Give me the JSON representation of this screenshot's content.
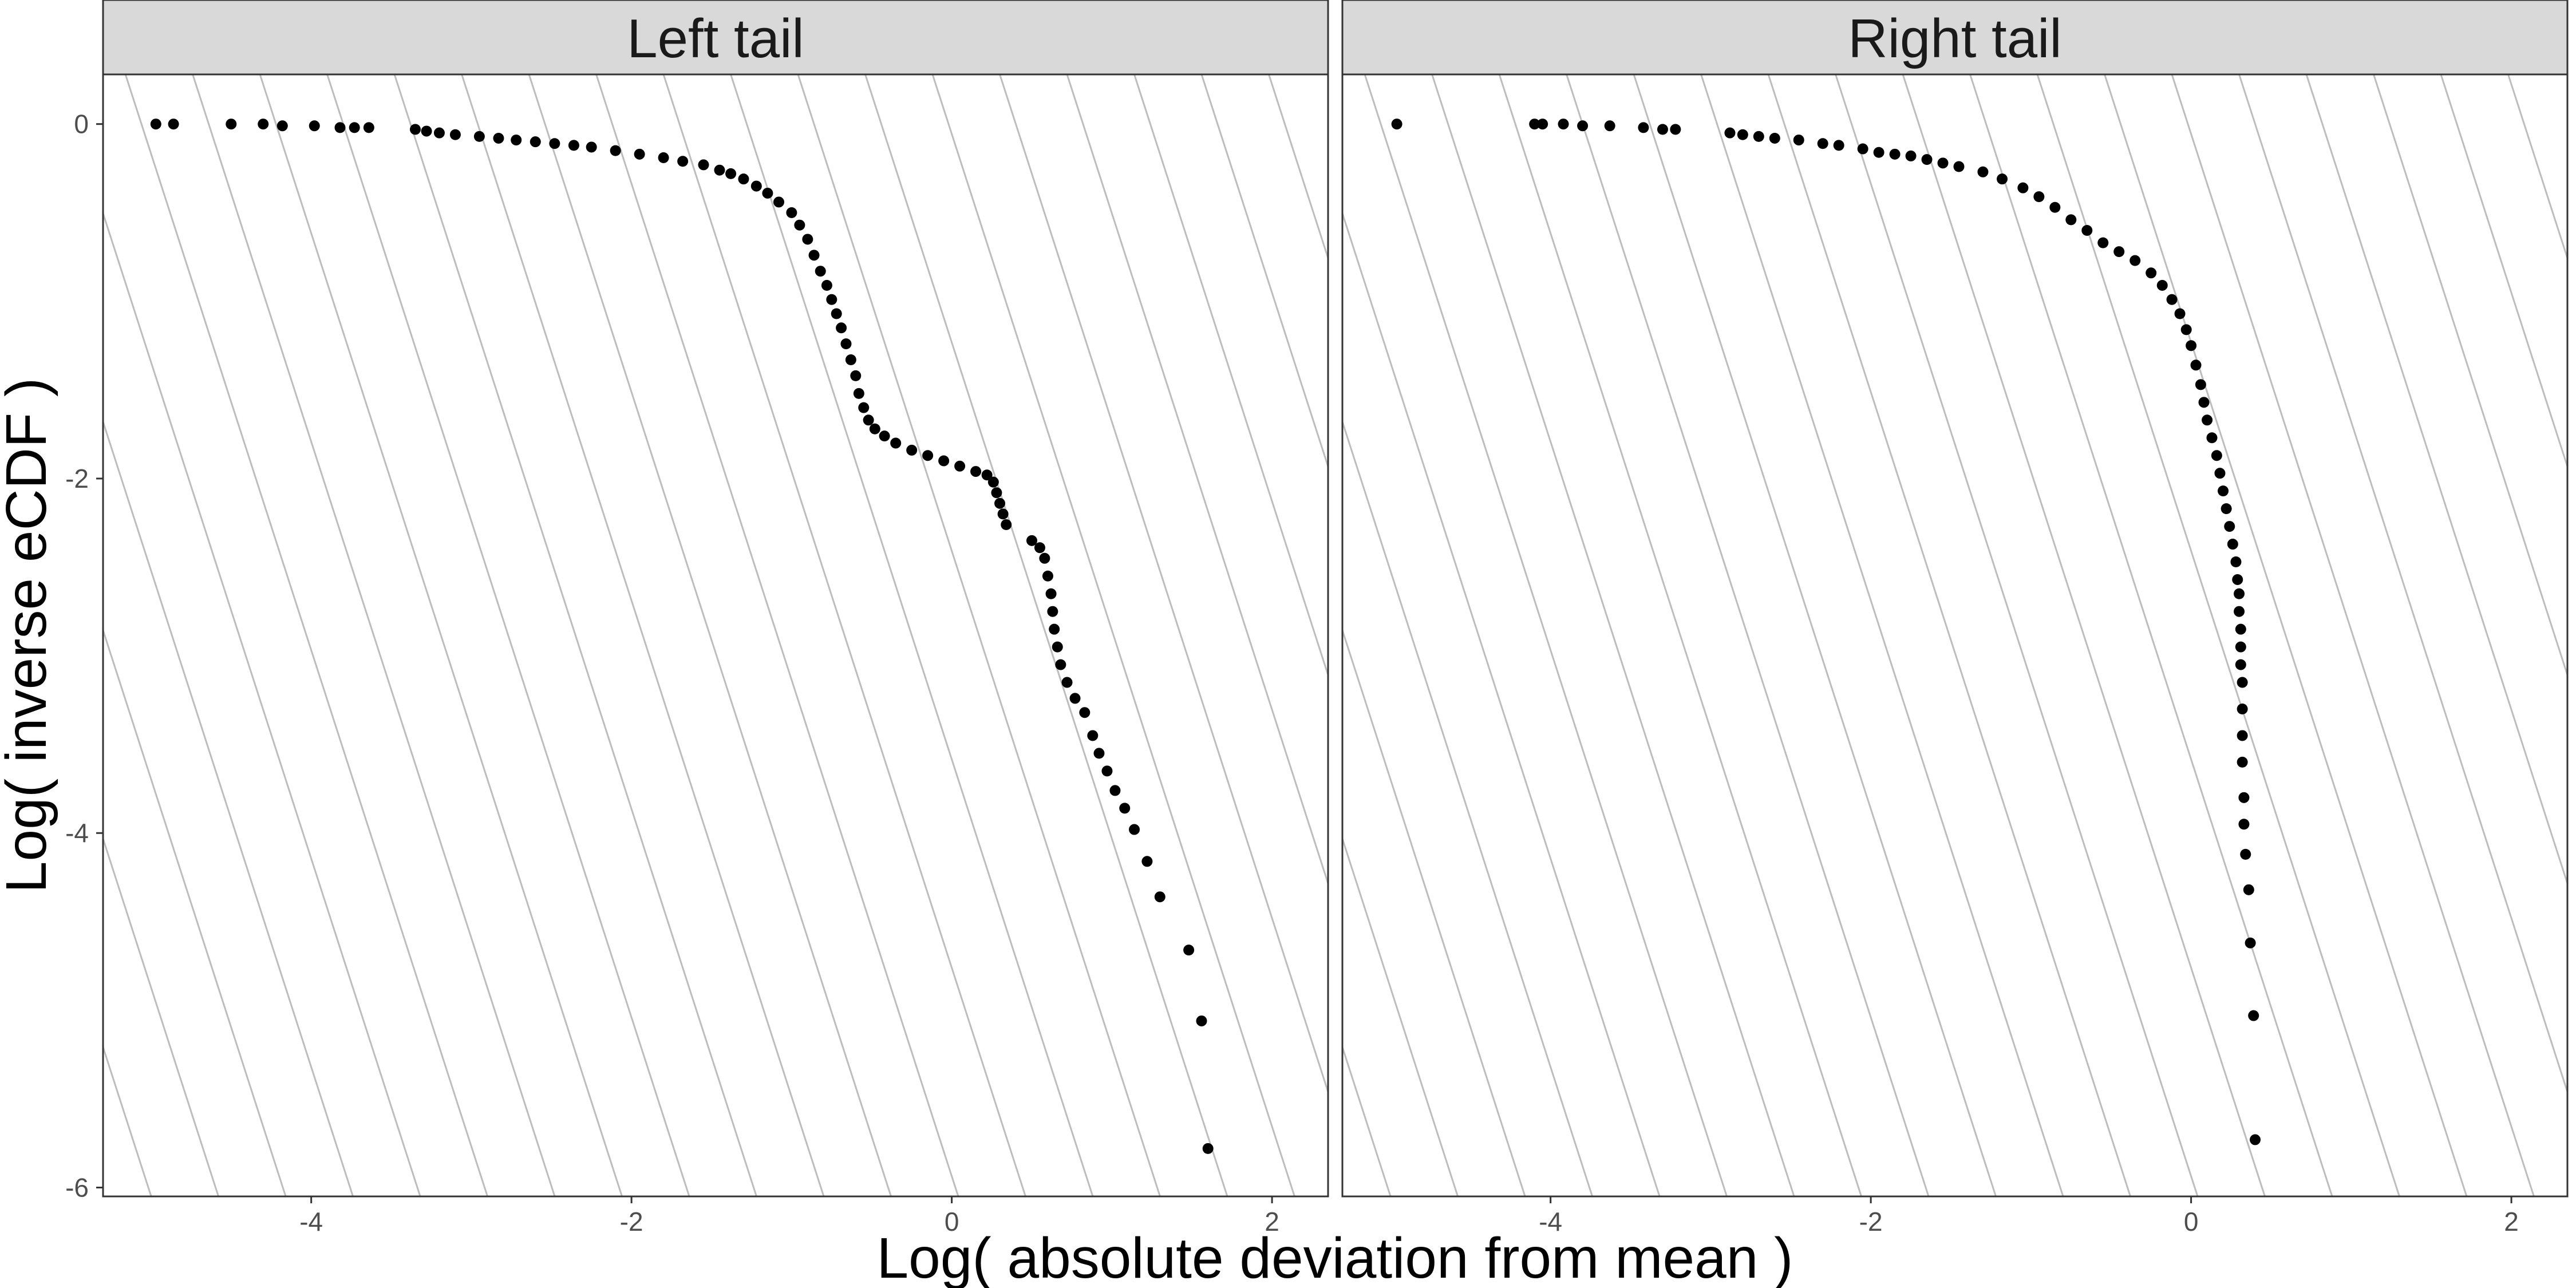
{
  "chart_data": {
    "type": "scatter",
    "facet_by": "tail",
    "xlabel": "Log( absolute deviation from mean )",
    "ylabel": "Log( inverse eCDF )",
    "xlim": [
      -5.3,
      2.35
    ],
    "ylim": [
      -6.05,
      0.28
    ],
    "x_ticks": [
      -4,
      -2,
      0,
      2
    ],
    "y_ticks": [
      0,
      -2,
      -4,
      -6
    ],
    "x_tick_labels": [
      "-4",
      "-2",
      "0",
      "2"
    ],
    "y_tick_labels": [
      "0",
      "-2",
      "-4",
      "-6"
    ],
    "grid": "diagonal reference lines, slope -2.8, spacing 0.42 in x",
    "background_line_color": "#bdbdbd",
    "strip_color": "#d9d9d9",
    "point_color": "#000000",
    "panels": [
      {
        "title": "Left tail",
        "points": [
          [
            -4.97,
            0.0
          ],
          [
            -4.86,
            0.0
          ],
          [
            -4.5,
            0.0
          ],
          [
            -4.3,
            0.0
          ],
          [
            -4.18,
            -0.01
          ],
          [
            -3.98,
            -0.01
          ],
          [
            -3.82,
            -0.02
          ],
          [
            -3.73,
            -0.02
          ],
          [
            -3.64,
            -0.02
          ],
          [
            -3.35,
            -0.03
          ],
          [
            -3.28,
            -0.04
          ],
          [
            -3.2,
            -0.05
          ],
          [
            -3.1,
            -0.06
          ],
          [
            -2.95,
            -0.07
          ],
          [
            -2.83,
            -0.08
          ],
          [
            -2.72,
            -0.09
          ],
          [
            -2.6,
            -0.1
          ],
          [
            -2.48,
            -0.11
          ],
          [
            -2.36,
            -0.12
          ],
          [
            -2.25,
            -0.13
          ],
          [
            -2.1,
            -0.15
          ],
          [
            -1.95,
            -0.17
          ],
          [
            -1.8,
            -0.19
          ],
          [
            -1.68,
            -0.21
          ],
          [
            -1.55,
            -0.23
          ],
          [
            -1.45,
            -0.26
          ],
          [
            -1.38,
            -0.28
          ],
          [
            -1.3,
            -0.31
          ],
          [
            -1.22,
            -0.35
          ],
          [
            -1.15,
            -0.39
          ],
          [
            -1.08,
            -0.44
          ],
          [
            -1.0,
            -0.5
          ],
          [
            -0.95,
            -0.57
          ],
          [
            -0.9,
            -0.65
          ],
          [
            -0.86,
            -0.74
          ],
          [
            -0.82,
            -0.83
          ],
          [
            -0.78,
            -0.91
          ],
          [
            -0.75,
            -0.99
          ],
          [
            -0.72,
            -1.07
          ],
          [
            -0.69,
            -1.15
          ],
          [
            -0.66,
            -1.24
          ],
          [
            -0.63,
            -1.33
          ],
          [
            -0.6,
            -1.42
          ],
          [
            -0.58,
            -1.52
          ],
          [
            -0.55,
            -1.6
          ],
          [
            -0.52,
            -1.67
          ],
          [
            -0.48,
            -1.72
          ],
          [
            -0.42,
            -1.76
          ],
          [
            -0.35,
            -1.8
          ],
          [
            -0.25,
            -1.84
          ],
          [
            -0.15,
            -1.87
          ],
          [
            -0.05,
            -1.9
          ],
          [
            0.05,
            -1.93
          ],
          [
            0.15,
            -1.96
          ],
          [
            0.22,
            -1.98
          ],
          [
            0.26,
            -2.02
          ],
          [
            0.28,
            -2.08
          ],
          [
            0.3,
            -2.14
          ],
          [
            0.32,
            -2.2
          ],
          [
            0.34,
            -2.26
          ],
          [
            0.5,
            -2.35
          ],
          [
            0.55,
            -2.39
          ],
          [
            0.58,
            -2.45
          ],
          [
            0.6,
            -2.55
          ],
          [
            0.62,
            -2.65
          ],
          [
            0.63,
            -2.75
          ],
          [
            0.64,
            -2.85
          ],
          [
            0.66,
            -2.95
          ],
          [
            0.68,
            -3.05
          ],
          [
            0.72,
            -3.15
          ],
          [
            0.77,
            -3.24
          ],
          [
            0.83,
            -3.32
          ],
          [
            0.88,
            -3.45
          ],
          [
            0.92,
            -3.55
          ],
          [
            0.97,
            -3.65
          ],
          [
            1.02,
            -3.76
          ],
          [
            1.08,
            -3.86
          ],
          [
            1.14,
            -3.98
          ],
          [
            1.22,
            -4.16
          ],
          [
            1.3,
            -4.36
          ],
          [
            1.48,
            -4.66
          ],
          [
            1.56,
            -5.06
          ],
          [
            1.6,
            -5.78
          ]
        ]
      },
      {
        "title": "Right tail",
        "points": [
          [
            -4.96,
            0.0
          ],
          [
            -4.1,
            0.0
          ],
          [
            -4.05,
            0.0
          ],
          [
            -3.92,
            0.0
          ],
          [
            -3.8,
            -0.01
          ],
          [
            -3.63,
            -0.01
          ],
          [
            -3.42,
            -0.02
          ],
          [
            -3.3,
            -0.03
          ],
          [
            -3.22,
            -0.03
          ],
          [
            -2.88,
            -0.05
          ],
          [
            -2.8,
            -0.06
          ],
          [
            -2.7,
            -0.07
          ],
          [
            -2.6,
            -0.08
          ],
          [
            -2.45,
            -0.09
          ],
          [
            -2.3,
            -0.11
          ],
          [
            -2.2,
            -0.12
          ],
          [
            -2.05,
            -0.14
          ],
          [
            -1.95,
            -0.16
          ],
          [
            -1.85,
            -0.17
          ],
          [
            -1.75,
            -0.18
          ],
          [
            -1.65,
            -0.2
          ],
          [
            -1.55,
            -0.22
          ],
          [
            -1.45,
            -0.24
          ],
          [
            -1.3,
            -0.27
          ],
          [
            -1.18,
            -0.31
          ],
          [
            -1.05,
            -0.36
          ],
          [
            -0.95,
            -0.41
          ],
          [
            -0.85,
            -0.47
          ],
          [
            -0.75,
            -0.54
          ],
          [
            -0.65,
            -0.6
          ],
          [
            -0.55,
            -0.67
          ],
          [
            -0.45,
            -0.72
          ],
          [
            -0.35,
            -0.77
          ],
          [
            -0.25,
            -0.84
          ],
          [
            -0.18,
            -0.91
          ],
          [
            -0.12,
            -0.99
          ],
          [
            -0.07,
            -1.07
          ],
          [
            -0.03,
            -1.16
          ],
          [
            0.0,
            -1.25
          ],
          [
            0.03,
            -1.36
          ],
          [
            0.06,
            -1.47
          ],
          [
            0.08,
            -1.57
          ],
          [
            0.1,
            -1.67
          ],
          [
            0.13,
            -1.77
          ],
          [
            0.16,
            -1.87
          ],
          [
            0.18,
            -1.97
          ],
          [
            0.2,
            -2.07
          ],
          [
            0.22,
            -2.17
          ],
          [
            0.24,
            -2.27
          ],
          [
            0.26,
            -2.37
          ],
          [
            0.28,
            -2.47
          ],
          [
            0.29,
            -2.57
          ],
          [
            0.3,
            -2.65
          ],
          [
            0.3,
            -2.75
          ],
          [
            0.31,
            -2.85
          ],
          [
            0.31,
            -2.95
          ],
          [
            0.31,
            -3.05
          ],
          [
            0.32,
            -3.15
          ],
          [
            0.32,
            -3.3
          ],
          [
            0.32,
            -3.45
          ],
          [
            0.32,
            -3.6
          ],
          [
            0.33,
            -3.8
          ],
          [
            0.33,
            -3.95
          ],
          [
            0.34,
            -4.12
          ],
          [
            0.36,
            -4.32
          ],
          [
            0.37,
            -4.62
          ],
          [
            0.39,
            -5.03
          ],
          [
            0.4,
            -5.73
          ]
        ]
      }
    ]
  }
}
